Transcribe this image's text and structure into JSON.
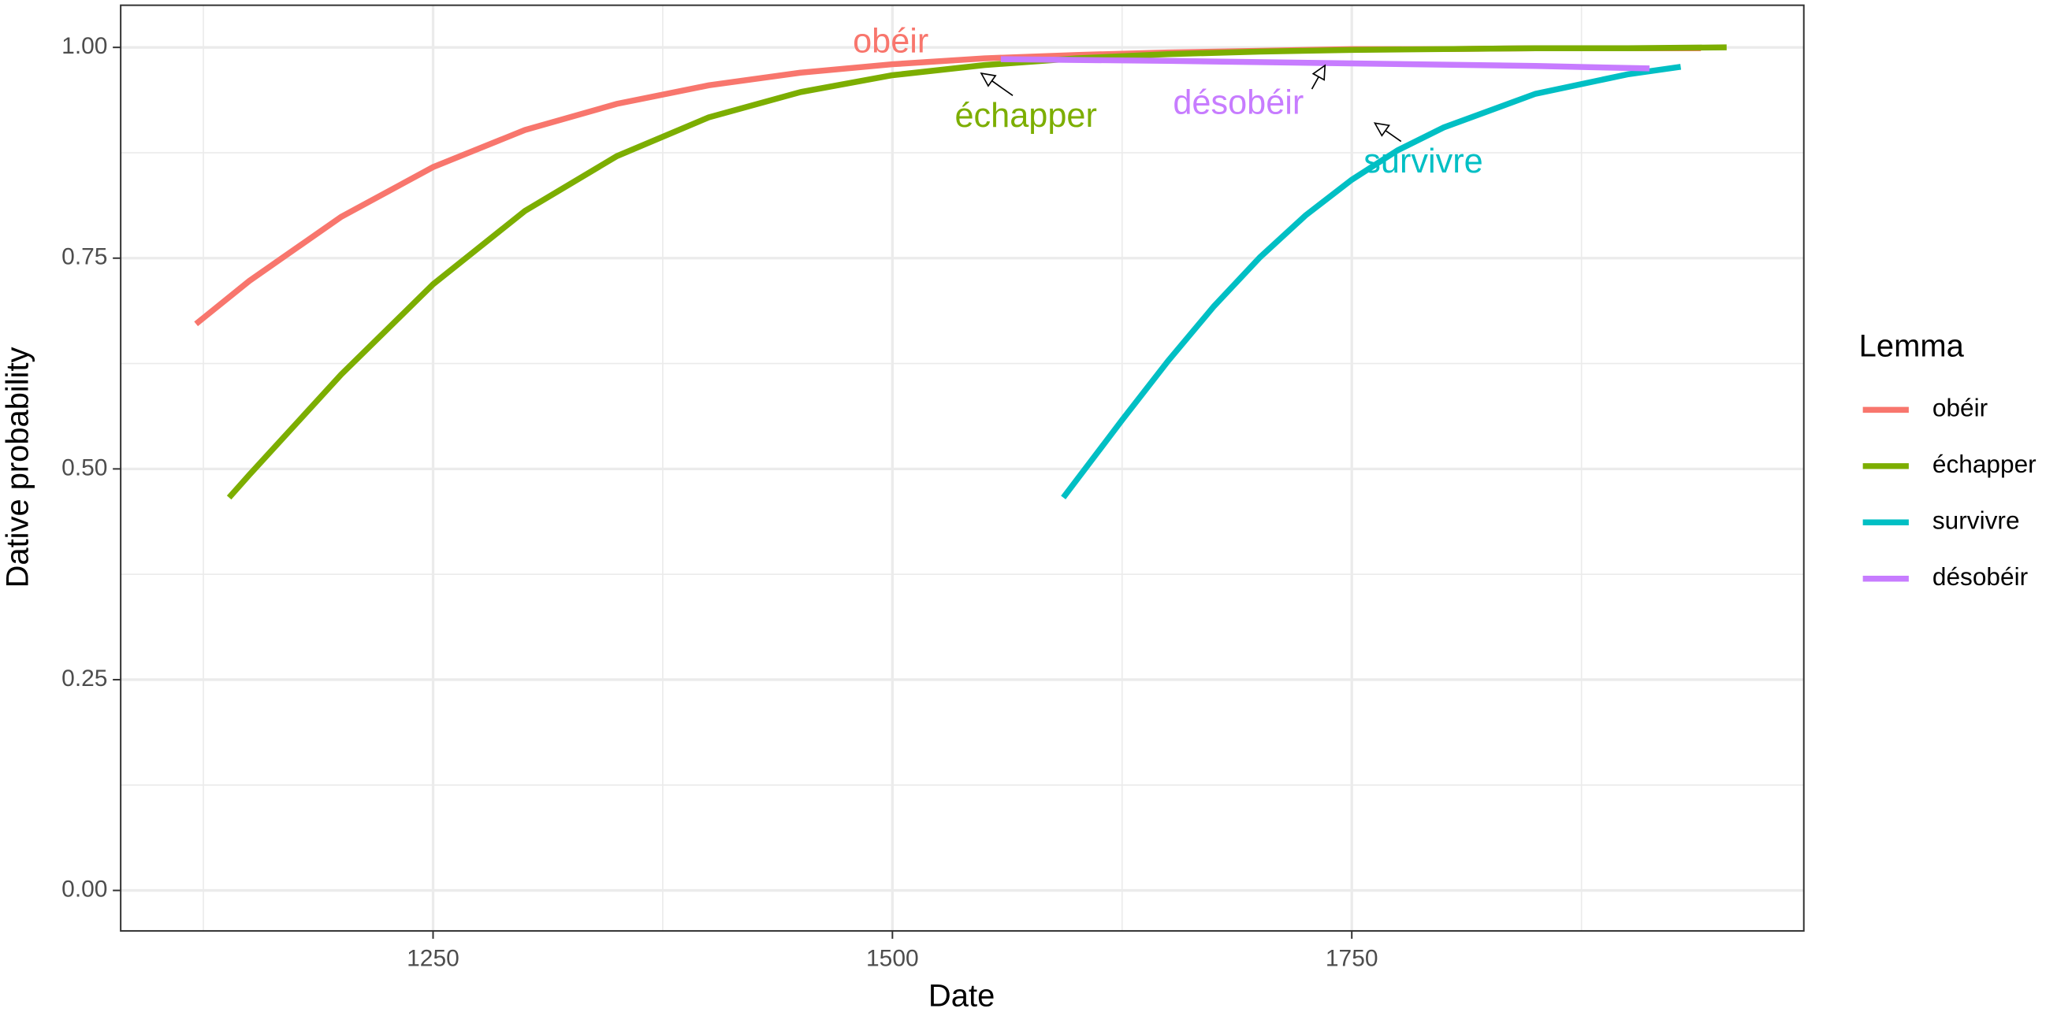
{
  "chart_data": {
    "type": "line",
    "x_label": "Date",
    "y_label": "Dative probability",
    "legend_title": "Lemma",
    "legend_position": "right",
    "grid": true,
    "xlim": [
      1080,
      1996
    ],
    "ylim": [
      -0.048,
      1.05
    ],
    "xticks": [
      1250,
      1500,
      1750
    ],
    "xminor": [
      1125,
      1375,
      1625,
      1875
    ],
    "yticks": [
      {
        "value": 0,
        "label": "0.00"
      },
      {
        "value": 0.25,
        "label": "0.25"
      },
      {
        "value": 0.5,
        "label": "0.50"
      },
      {
        "value": 0.75,
        "label": "0.75"
      },
      {
        "value": 1,
        "label": "1.00"
      }
    ],
    "yminor": [
      0.125,
      0.375,
      0.625,
      0.875
    ],
    "series": [
      {
        "name": "obéir",
        "color": "#f8766d",
        "x": [
          1121,
          1150,
          1200,
          1250,
          1300,
          1350,
          1400,
          1450,
          1500,
          1550,
          1600,
          1650,
          1700,
          1750,
          1800,
          1850,
          1900,
          1940
        ],
        "values": [
          0.672,
          0.723,
          0.799,
          0.858,
          0.902,
          0.933,
          0.955,
          0.97,
          0.98,
          0.987,
          0.991,
          0.994,
          0.996,
          0.998,
          0.998,
          0.999,
          0.999,
          0.999
        ]
      },
      {
        "name": "échapper",
        "color": "#7cae00",
        "x": [
          1139,
          1150,
          1200,
          1250,
          1300,
          1350,
          1400,
          1450,
          1500,
          1550,
          1600,
          1650,
          1700,
          1750,
          1800,
          1850,
          1900,
          1954
        ],
        "values": [
          0.466,
          0.493,
          0.612,
          0.719,
          0.806,
          0.871,
          0.917,
          0.947,
          0.967,
          0.979,
          0.987,
          0.992,
          0.995,
          0.997,
          0.998,
          0.999,
          0.999,
          1.0
        ]
      },
      {
        "name": "survivre",
        "color": "#00bfc4",
        "x": [
          1593,
          1625,
          1650,
          1675,
          1700,
          1725,
          1750,
          1775,
          1800,
          1850,
          1900,
          1929
        ],
        "values": [
          0.466,
          0.558,
          0.628,
          0.693,
          0.751,
          0.801,
          0.843,
          0.878,
          0.905,
          0.945,
          0.968,
          0.977
        ]
      },
      {
        "name": "désobéir",
        "color": "#c77cff",
        "x": [
          1559,
          1650,
          1750,
          1850,
          1912
        ],
        "values": [
          0.986,
          0.984,
          0.981,
          0.978,
          0.975
        ]
      }
    ],
    "annotations": [
      "obéir",
      "échapper",
      "survivre",
      "désobéir"
    ]
  }
}
